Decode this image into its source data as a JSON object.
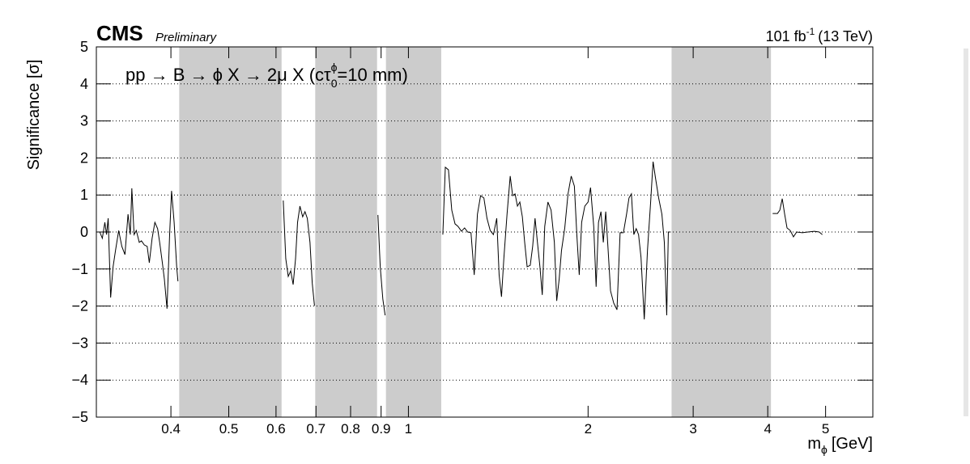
{
  "chart_data": {
    "type": "line",
    "cms_label": "CMS",
    "cms_status": "Preliminary",
    "lumi": "101 fb",
    "lumi_sup": "-1",
    "lumi_energy": "(13 TeV)",
    "annotation": "pp → B → ϕ X → 2μ X (cτ",
    "annotation_sub": "0",
    "annotation_sup": "ϕ",
    "annotation_end": "=10 mm)",
    "ylabel": "Significance [σ]",
    "xlabel": "m",
    "xlabel_sub": "ϕ",
    "xlabel_unit": "[GeV]",
    "xlog": true,
    "ygrid": true,
    "color": "#000000",
    "shade_color": "#cccccc",
    "shaded_regions": [
      [
        0.413,
        0.613
      ],
      [
        0.698,
        0.886
      ],
      [
        0.917,
        1.135
      ],
      [
        2.76,
        4.05
      ]
    ],
    "xlim": [
      0.3,
      6
    ],
    "ylim": [
      -5,
      5
    ],
    "xticks": [
      0.4,
      0.5,
      0.6,
      0.7,
      0.8,
      0.9,
      1,
      2,
      3,
      4,
      5
    ],
    "yticks": [
      {
        "value": -5,
        "label": "−5"
      },
      {
        "value": -4,
        "label": "−4"
      },
      {
        "value": -3,
        "label": "−3"
      },
      {
        "value": -2,
        "label": "−2"
      },
      {
        "value": -1,
        "label": "−1"
      },
      0,
      1,
      2,
      3,
      4,
      5
    ],
    "x": [
      0.304,
      0.307,
      0.31,
      0.312,
      0.314,
      0.317,
      0.32,
      0.323,
      0.327,
      0.331,
      0.335,
      0.339,
      0.342,
      0.344,
      0.347,
      0.35,
      0.354,
      0.357,
      0.361,
      0.365,
      0.368,
      0.372,
      0.376,
      0.38,
      0.383,
      0.387,
      0.39,
      0.394,
      0.398,
      0.401,
      0.405,
      0.409,
      0.411,
      null,
      0.617,
      0.623,
      0.629,
      0.635,
      0.641,
      0.647,
      0.652,
      0.658,
      0.665,
      0.671,
      0.677,
      0.684,
      0.69,
      0.696,
      null,
      0.889,
      0.897,
      0.906,
      0.914,
      null,
      1.142,
      1.153,
      1.167,
      1.182,
      1.197,
      1.211,
      1.227,
      1.242,
      1.257,
      1.273,
      1.289,
      1.305,
      1.321,
      1.338,
      1.354,
      1.371,
      1.388,
      1.406,
      1.419,
      1.432,
      1.445,
      1.463,
      1.481,
      1.495,
      1.509,
      1.523,
      1.537,
      1.552,
      1.566,
      1.581,
      1.6,
      1.615,
      1.63,
      1.645,
      1.661,
      1.676,
      1.692,
      1.713,
      1.734,
      1.756,
      1.772,
      1.789,
      1.805,
      1.828,
      1.851,
      1.874,
      1.897,
      1.915,
      1.933,
      1.951,
      1.975,
      2.0,
      2.019,
      2.044,
      2.063,
      2.082,
      2.102,
      2.121,
      2.141,
      2.161,
      2.181,
      2.208,
      2.236,
      2.263,
      2.292,
      2.32,
      2.342,
      2.364,
      2.386,
      2.408,
      2.43,
      2.453,
      2.484,
      2.515,
      2.546,
      2.57,
      2.594,
      2.626,
      2.659,
      2.684,
      2.709,
      2.726,
      2.751,
      null,
      4.076,
      4.153,
      4.191,
      4.23,
      4.27,
      4.309,
      4.363,
      4.417,
      4.472,
      4.57,
      4.671,
      4.787,
      4.878,
      4.938
    ],
    "values": [
      0,
      -0.17,
      0.26,
      -0.07,
      0.37,
      -1.77,
      -0.94,
      -0.5,
      0.04,
      -0.39,
      -0.61,
      0.48,
      -0.07,
      1.18,
      -0.07,
      0.04,
      -0.28,
      -0.24,
      -0.35,
      -0.39,
      -0.83,
      -0.17,
      0.26,
      0.09,
      -0.28,
      -0.83,
      -1.27,
      -2.07,
      -0.07,
      1.11,
      0.26,
      -0.94,
      -1.33,
      null,
      0.85,
      -0.72,
      -1.2,
      -1.05,
      -1.42,
      -0.72,
      0.26,
      0.7,
      0.41,
      0.55,
      0.37,
      -0.28,
      -1.38,
      -1.99,
      null,
      0.46,
      -0.94,
      -1.81,
      -2.25,
      null,
      -0.07,
      1.75,
      1.68,
      0.59,
      0.22,
      0.15,
      0.02,
      0.11,
      0,
      -0.02,
      -1.16,
      0.48,
      0.98,
      0.92,
      0.37,
      0.04,
      -0.07,
      0.37,
      -1.16,
      -1.75,
      -0.72,
      0.48,
      1.51,
      0.98,
      1.03,
      0.7,
      0.81,
      0.41,
      -0.28,
      -0.94,
      -0.9,
      -0.39,
      0.37,
      -0.28,
      -0.94,
      -1.7,
      0.15,
      0.81,
      0.59,
      -0.28,
      -1.86,
      -1.27,
      -0.5,
      0.11,
      1.03,
      1.51,
      1.24,
      -0.07,
      -1.16,
      0.26,
      0.7,
      0.81,
      1.2,
      0.15,
      -1.48,
      0.26,
      0.55,
      -0.28,
      0.55,
      -0.5,
      -1.59,
      -1.92,
      -2.1,
      -0.02,
      -0.02,
      0.48,
      0.92,
      1.03,
      -0.07,
      0.09,
      -0.07,
      -0.68,
      -2.36,
      -0.5,
      0.81,
      1.9,
      1.46,
      0.92,
      0.48,
      -0.28,
      -2.25,
      0,
      0,
      null,
      0.5,
      0.5,
      0.59,
      0.9,
      0.48,
      0.11,
      0.04,
      -0.13,
      0,
      -0.02,
      0,
      0.02,
      0,
      -0.07
    ]
  }
}
